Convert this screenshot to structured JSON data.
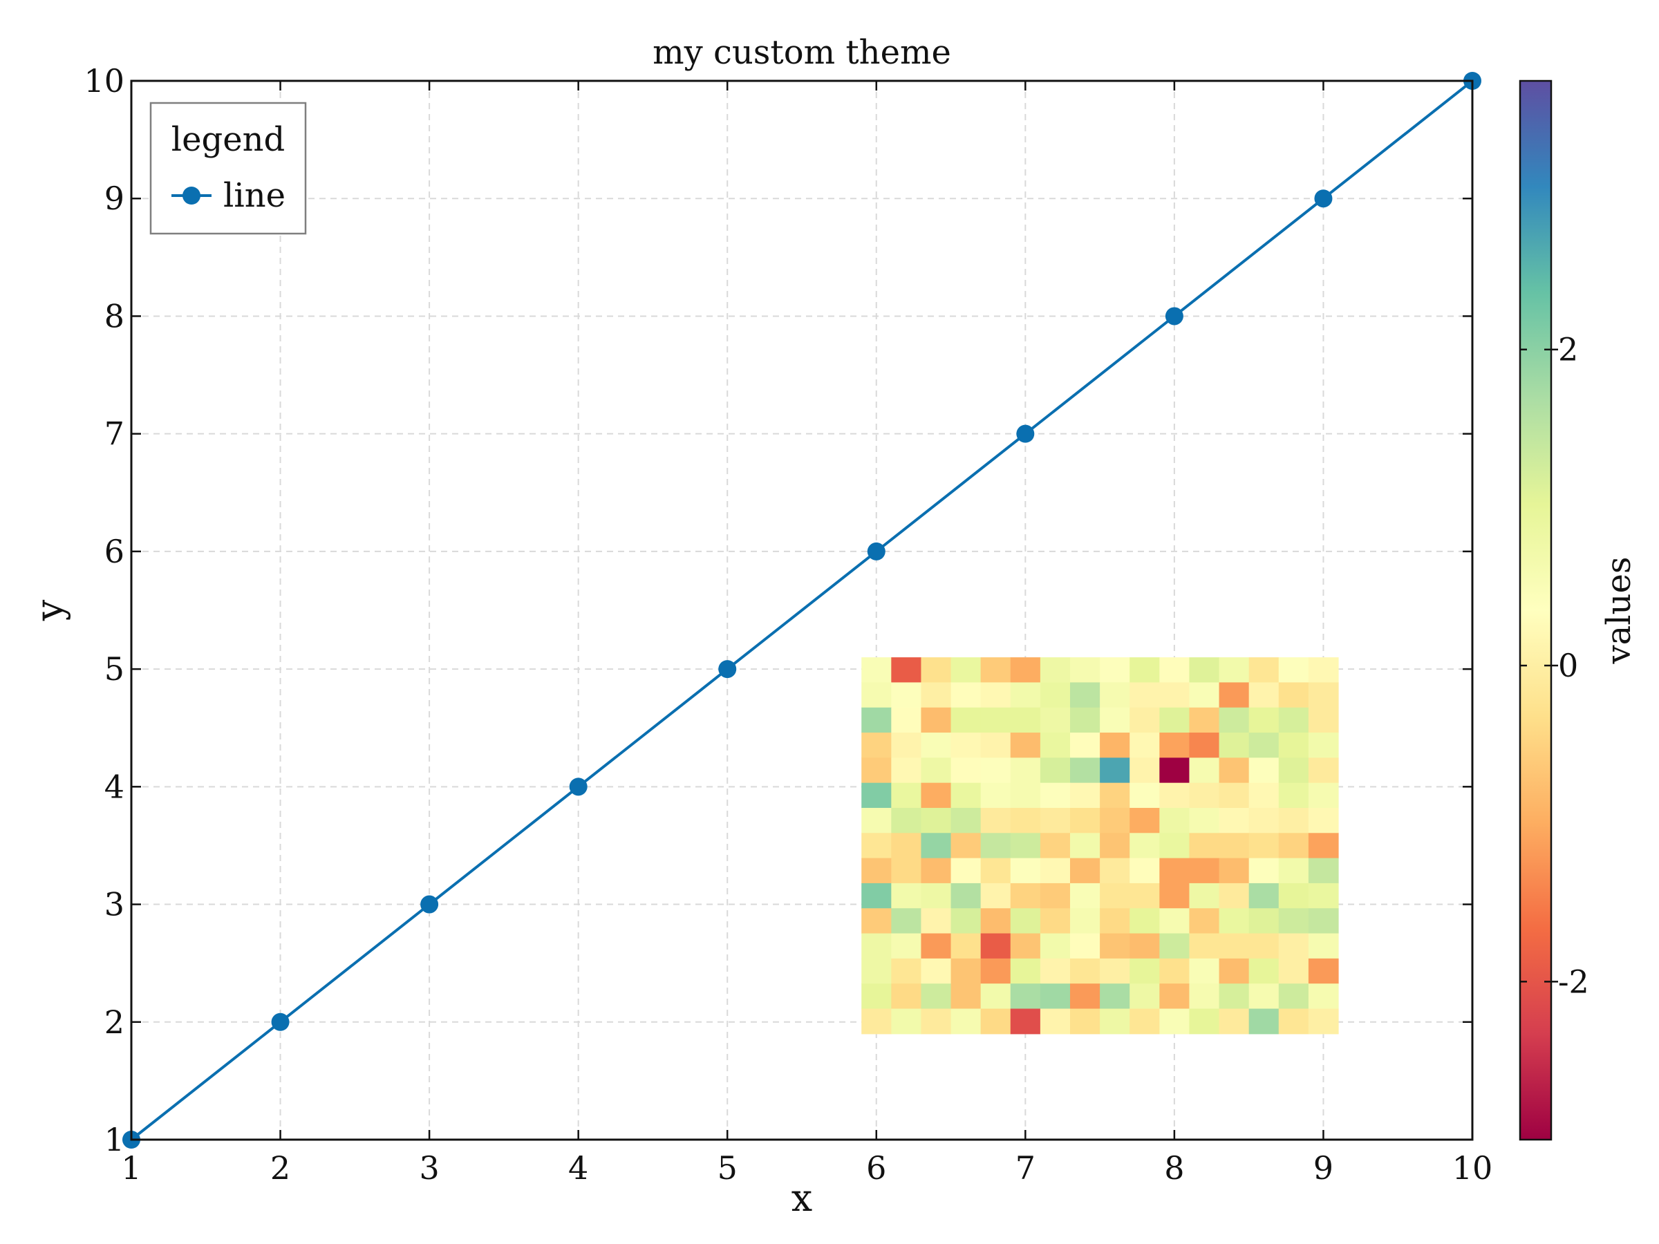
{
  "chart_data": {
    "type": "line",
    "title": "my custom theme",
    "xlabel": "x",
    "ylabel": "y",
    "xlim": [
      1,
      10
    ],
    "ylim": [
      1,
      10
    ],
    "x_ticks": [
      "1",
      "2",
      "3",
      "4",
      "5",
      "6",
      "7",
      "8",
      "9",
      "10"
    ],
    "y_ticks": [
      "1",
      "2",
      "3",
      "4",
      "5",
      "6",
      "7",
      "8",
      "9",
      "10"
    ],
    "grid": true,
    "series": [
      {
        "name": "line",
        "color": "#0a6fb0",
        "marker": "circle",
        "x": [
          1,
          2,
          3,
          4,
          5,
          6,
          7,
          8,
          9,
          10
        ],
        "y": [
          1,
          2,
          3,
          4,
          5,
          6,
          7,
          8,
          9,
          10
        ]
      }
    ],
    "legend": {
      "title": "legend",
      "placement": "top-left"
    },
    "inset_heatmap": {
      "colormap": "Spectral",
      "extent": {
        "x": [
          5.9,
          9.1
        ],
        "y": [
          1.9,
          5.1
        ]
      },
      "vmin": -3.0,
      "vmax": 3.7,
      "values": [
        [
          0.5,
          -1.9,
          -0.3,
          0.9,
          -0.6,
          -1.0,
          0.8,
          0.6,
          0.4,
          1.0,
          0.3,
          1.1,
          0.7,
          -0.2,
          0.4,
          0.2
        ],
        [
          0.6,
          0.4,
          0.0,
          0.3,
          0.2,
          0.7,
          0.9,
          1.5,
          0.6,
          0.1,
          0.1,
          0.5,
          -1.2,
          0.1,
          -0.3,
          -0.1
        ],
        [
          1.8,
          0.3,
          -0.8,
          1.0,
          1.0,
          1.0,
          0.8,
          1.3,
          0.5,
          0.0,
          1.1,
          -0.6,
          1.3,
          1.0,
          1.2,
          -0.1
        ],
        [
          -0.5,
          0.1,
          0.5,
          0.2,
          0.1,
          -0.8,
          0.9,
          0.3,
          -0.9,
          0.2,
          -1.1,
          -1.4,
          1.1,
          1.3,
          1.0,
          0.7
        ],
        [
          -0.6,
          0.2,
          0.8,
          0.3,
          0.4,
          0.6,
          1.2,
          1.6,
          2.7,
          0.1,
          -3.7,
          0.6,
          -0.7,
          0.4,
          1.1,
          -0.1
        ],
        [
          2.1,
          0.9,
          -1.0,
          0.9,
          0.5,
          0.6,
          0.4,
          0.2,
          -0.5,
          0.4,
          0.1,
          0.0,
          -0.1,
          0.2,
          0.9,
          0.6
        ],
        [
          0.6,
          1.2,
          1.1,
          1.3,
          -0.1,
          -0.2,
          -0.1,
          -0.3,
          -0.6,
          -1.0,
          0.8,
          0.6,
          0.2,
          0.1,
          0.0,
          0.2
        ],
        [
          -0.2,
          -0.4,
          1.9,
          -0.6,
          1.4,
          1.3,
          -0.5,
          0.7,
          -0.7,
          0.7,
          0.9,
          -0.4,
          -0.4,
          -0.3,
          -0.5,
          -1.1
        ],
        [
          -0.7,
          -0.4,
          -0.8,
          0.3,
          -0.2,
          0.4,
          0.2,
          -0.8,
          -0.1,
          0.3,
          -1.1,
          -1.1,
          -0.8,
          0.4,
          0.7,
          1.4
        ],
        [
          2.1,
          0.7,
          0.8,
          1.6,
          0.1,
          -0.5,
          -0.6,
          0.5,
          -0.2,
          -0.2,
          -1.1,
          0.8,
          -0.1,
          1.7,
          1.0,
          0.9
        ],
        [
          -0.6,
          1.5,
          0.1,
          1.2,
          -0.8,
          1.1,
          -0.4,
          0.6,
          -0.4,
          1.0,
          0.6,
          -0.6,
          0.9,
          1.1,
          1.3,
          1.4
        ],
        [
          0.8,
          0.6,
          -1.2,
          -0.3,
          -1.9,
          -0.7,
          0.7,
          0.3,
          -0.7,
          -0.8,
          1.3,
          -0.2,
          -0.2,
          -0.2,
          0.0,
          0.6
        ],
        [
          0.8,
          -0.2,
          0.2,
          -0.7,
          -1.2,
          1.0,
          0.1,
          -0.2,
          0.0,
          1.0,
          -0.3,
          0.5,
          -0.8,
          1.0,
          0.0,
          -1.2
        ],
        [
          1.0,
          -0.4,
          1.3,
          -0.7,
          0.7,
          1.7,
          1.8,
          -1.2,
          1.7,
          0.8,
          -0.8,
          0.6,
          1.2,
          0.6,
          1.3,
          0.6
        ],
        [
          -0.1,
          0.7,
          -0.1,
          0.6,
          -0.4,
          -2.1,
          0.1,
          -0.3,
          0.8,
          -0.2,
          0.5,
          1.0,
          -0.1,
          1.8,
          -0.2,
          0.0
        ]
      ]
    },
    "colorbar": {
      "label": "values",
      "range": [
        -3.0,
        3.7
      ],
      "ticks": [
        {
          "value": -2,
          "label": "-2"
        },
        {
          "value": 0,
          "label": "0"
        },
        {
          "value": 2,
          "label": "2"
        }
      ]
    }
  }
}
